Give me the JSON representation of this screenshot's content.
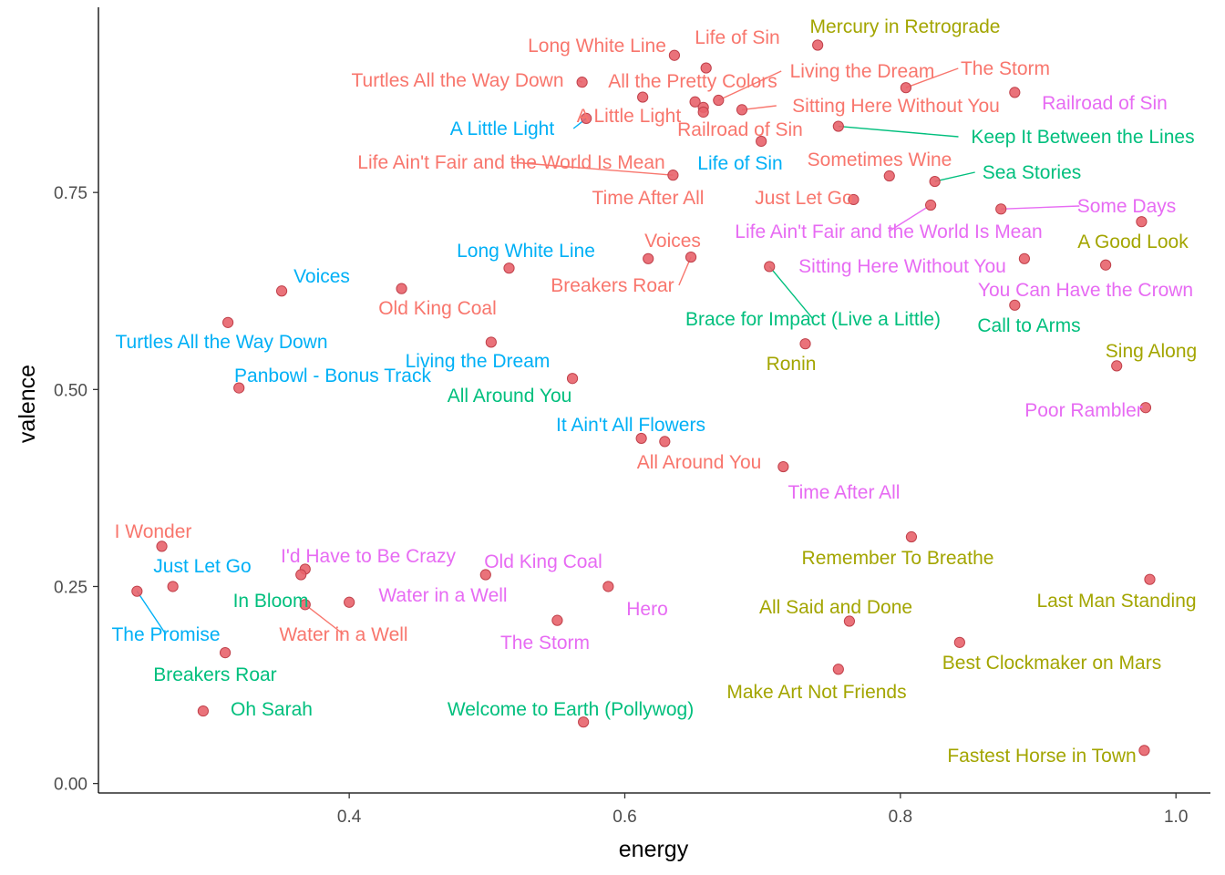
{
  "chart_data": {
    "type": "scatter",
    "xlabel": "energy",
    "ylabel": "valence",
    "xlim": [
      0.218,
      1.025
    ],
    "ylim": [
      -0.012,
      0.985
    ],
    "x_ticks": [
      {
        "value": 0.4,
        "label": "0.4"
      },
      {
        "value": 0.6,
        "label": "0.6"
      },
      {
        "value": 0.8,
        "label": "0.8"
      },
      {
        "value": 1.0,
        "label": "1.0"
      }
    ],
    "y_ticks": [
      {
        "value": 0.0,
        "label": "0.00"
      },
      {
        "value": 0.25,
        "label": "0.25"
      },
      {
        "value": 0.5,
        "label": "0.50"
      },
      {
        "value": 0.75,
        "label": "0.75"
      }
    ],
    "grid": false,
    "legend": "none",
    "point_color": "#e8636b",
    "label_colors": {
      "salmon": "#f8766d",
      "olive": "#a3a500",
      "green": "#00bf7d",
      "blue": "#00b0f6",
      "pink": "#e76bf3"
    },
    "points": [
      {
        "x": 0.636,
        "y": 0.924,
        "label": "Long White Line",
        "color": "salmon"
      },
      {
        "x": 0.659,
        "y": 0.908,
        "label": "Life of Sin",
        "color": "salmon"
      },
      {
        "x": 0.74,
        "y": 0.937,
        "label": "Mercury in Retrograde",
        "color": "olive"
      },
      {
        "x": 0.569,
        "y": 0.89,
        "label": "Turtles All the Way Down",
        "color": "salmon"
      },
      {
        "x": 0.613,
        "y": 0.871,
        "label": "All the Pretty Colors",
        "color": "salmon"
      },
      {
        "x": 0.668,
        "y": 0.867,
        "label": "Living the Dream",
        "color": "salmon"
      },
      {
        "x": 0.804,
        "y": 0.883,
        "label": "The Storm",
        "color": "salmon"
      },
      {
        "x": 0.883,
        "y": 0.877,
        "label": "Railroad of Sin",
        "color": "pink"
      },
      {
        "x": 0.572,
        "y": 0.844,
        "label": "A Little Light",
        "color": "blue"
      },
      {
        "x": 0.651,
        "y": 0.865,
        "label": "A Little Light",
        "color": "salmon"
      },
      {
        "x": 0.657,
        "y": 0.858,
        "label": "Railroad of Sin",
        "color": "salmon"
      },
      {
        "x": 0.685,
        "y": 0.855,
        "label": "Sitting Here Without You",
        "color": "salmon"
      },
      {
        "x": 0.755,
        "y": 0.834,
        "label": "Keep It Between the Lines",
        "color": "green"
      },
      {
        "x": 0.699,
        "y": 0.815,
        "label": "Life of Sin",
        "color": "blue"
      },
      {
        "x": 0.635,
        "y": 0.772,
        "label": "Life Ain't Fair and the World Is Mean",
        "color": "salmon"
      },
      {
        "x": 0.792,
        "y": 0.771,
        "label": "Sometimes Wine",
        "color": "salmon"
      },
      {
        "x": 0.825,
        "y": 0.764,
        "label": "Sea Stories",
        "color": "green"
      },
      {
        "x": 0.766,
        "y": 0.741,
        "label": "Just Let Go",
        "color": "salmon"
      },
      {
        "x": 0.822,
        "y": 0.734,
        "label": "Life Ain't Fair and the World Is Mean",
        "color": "pink"
      },
      {
        "x": 0.873,
        "y": 0.729,
        "label": "Some Days",
        "color": "pink"
      },
      {
        "x": 0.975,
        "y": 0.713,
        "label": "A Good Look",
        "color": "olive"
      },
      {
        "x": 0.657,
        "y": 0.852,
        "label": "Time After All",
        "color": "salmon"
      },
      {
        "x": 0.617,
        "y": 0.666,
        "label": "Voices",
        "color": "salmon"
      },
      {
        "x": 0.648,
        "y": 0.668,
        "label": "Breakers Roar",
        "color": "salmon"
      },
      {
        "x": 0.89,
        "y": 0.666,
        "label": "Sitting Here Without You",
        "color": "pink"
      },
      {
        "x": 0.949,
        "y": 0.658,
        "label": "You Can Have the Crown",
        "color": "pink"
      },
      {
        "x": 0.705,
        "y": 0.656,
        "label": "Brace for Impact (Live a Little)",
        "color": "green"
      },
      {
        "x": 0.516,
        "y": 0.654,
        "label": "Long White Line",
        "color": "blue"
      },
      {
        "x": 0.351,
        "y": 0.625,
        "label": "Voices",
        "color": "blue"
      },
      {
        "x": 0.438,
        "y": 0.628,
        "label": "Old King Coal",
        "color": "salmon"
      },
      {
        "x": 0.883,
        "y": 0.607,
        "label": "Call to Arms",
        "color": "green"
      },
      {
        "x": 0.312,
        "y": 0.585,
        "label": "Turtles All the Way Down",
        "color": "blue"
      },
      {
        "x": 0.503,
        "y": 0.56,
        "label": "Living the Dream",
        "color": "blue"
      },
      {
        "x": 0.731,
        "y": 0.558,
        "label": "Ronin",
        "color": "olive"
      },
      {
        "x": 0.957,
        "y": 0.53,
        "label": "Sing Along",
        "color": "olive"
      },
      {
        "x": 0.32,
        "y": 0.502,
        "label": "Panbowl - Bonus Track",
        "color": "blue"
      },
      {
        "x": 0.562,
        "y": 0.514,
        "label": "All Around You",
        "color": "green"
      },
      {
        "x": 0.978,
        "y": 0.477,
        "label": "Poor Rambler",
        "color": "pink"
      },
      {
        "x": 0.612,
        "y": 0.438,
        "label": "It Ain't All Flowers",
        "color": "blue"
      },
      {
        "x": 0.629,
        "y": 0.434,
        "label": "All Around You",
        "color": "salmon"
      },
      {
        "x": 0.715,
        "y": 0.402,
        "label": "Time After All",
        "color": "pink"
      },
      {
        "x": 0.808,
        "y": 0.313,
        "label": "Remember To Breathe",
        "color": "olive"
      },
      {
        "x": 0.264,
        "y": 0.301,
        "label": "I Wonder",
        "color": "salmon"
      },
      {
        "x": 0.368,
        "y": 0.272,
        "label": "I'd Have to Be Crazy",
        "color": "pink"
      },
      {
        "x": 0.365,
        "y": 0.265,
        "label": "Just Let Go",
        "color": "blue"
      },
      {
        "x": 0.499,
        "y": 0.265,
        "label": "Old King Coal",
        "color": "pink"
      },
      {
        "x": 0.981,
        "y": 0.259,
        "label": "Last Man Standing",
        "color": "olive"
      },
      {
        "x": 0.272,
        "y": 0.25,
        "label": "In Bloom",
        "color": "green"
      },
      {
        "x": 0.588,
        "y": 0.25,
        "label": "Hero",
        "color": "pink"
      },
      {
        "x": 0.246,
        "y": 0.244,
        "label": "The Promise",
        "color": "blue"
      },
      {
        "x": 0.4,
        "y": 0.23,
        "label": "Water in a Well",
        "color": "pink"
      },
      {
        "x": 0.368,
        "y": 0.227,
        "label": "Water in a Well",
        "color": "salmon"
      },
      {
        "x": 0.551,
        "y": 0.207,
        "label": "The Storm",
        "color": "pink"
      },
      {
        "x": 0.763,
        "y": 0.206,
        "label": "All Said and Done",
        "color": "olive"
      },
      {
        "x": 0.843,
        "y": 0.179,
        "label": "Best Clockmaker on Mars",
        "color": "olive"
      },
      {
        "x": 0.31,
        "y": 0.166,
        "label": "Breakers Roar",
        "color": "green"
      },
      {
        "x": 0.755,
        "y": 0.145,
        "label": "Make Art Not Friends",
        "color": "olive"
      },
      {
        "x": 0.294,
        "y": 0.092,
        "label": "Oh Sarah",
        "color": "green"
      },
      {
        "x": 0.57,
        "y": 0.078,
        "label": "Welcome to Earth (Pollywog)",
        "color": "green"
      },
      {
        "x": 0.977,
        "y": 0.042,
        "label": "Fastest Horse in Town",
        "color": "olive"
      }
    ]
  }
}
